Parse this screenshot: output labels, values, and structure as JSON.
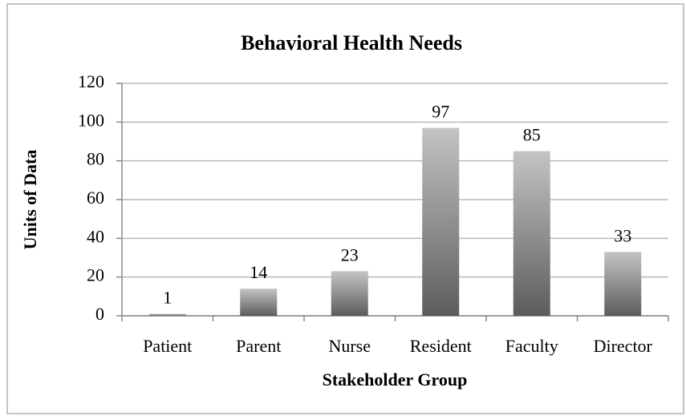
{
  "chart_data": {
    "type": "bar",
    "title": "Behavioral Health Needs",
    "x_label": "Stakeholder Group",
    "y_label": "Units of Data",
    "categories": [
      "Patient",
      "Parent",
      "Nurse",
      "Resident",
      "Faculty",
      "Director"
    ],
    "values": [
      1,
      14,
      23,
      97,
      85,
      33
    ],
    "ylim": [
      0,
      120
    ],
    "yticks": [
      0,
      20,
      40,
      60,
      80,
      100,
      120
    ],
    "grid": true
  }
}
